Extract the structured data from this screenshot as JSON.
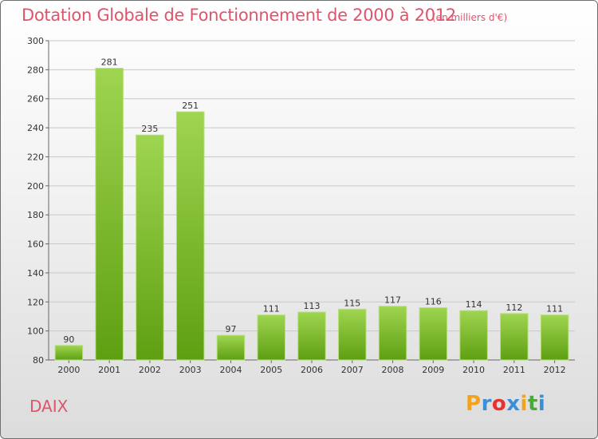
{
  "title": "Dotation Globale de Fonctionnement de 2000 à 2012",
  "subtitle": "(en milliers d'€)",
  "place": "DAIX",
  "logo": {
    "letters": [
      "P",
      "r",
      "o",
      "x",
      "i",
      "t",
      "i"
    ],
    "colors": [
      "#f3a21b",
      "#3a8fd6",
      "#e9322f",
      "#3a8fd6",
      "#f3a21b",
      "#4aa83c",
      "#3a8fd6"
    ]
  },
  "colors": {
    "bar_light": "#9fd550",
    "bar_dark": "#5e9f12",
    "title": "#e0546b"
  },
  "chart_data": {
    "type": "bar",
    "title": "Dotation Globale de Fonctionnement de 2000 à 2012",
    "subtitle": "(en milliers d'€)",
    "categories": [
      "2000",
      "2001",
      "2002",
      "2003",
      "2004",
      "2005",
      "2006",
      "2007",
      "2008",
      "2009",
      "2010",
      "2011",
      "2012"
    ],
    "values": [
      90,
      281,
      235,
      251,
      97,
      111,
      113,
      115,
      117,
      116,
      114,
      112,
      111
    ],
    "xlabel": "",
    "ylabel": "",
    "ylim": [
      80,
      300
    ],
    "yticks": [
      80,
      100,
      120,
      140,
      160,
      180,
      200,
      220,
      240,
      260,
      280,
      300
    ],
    "grid": true
  }
}
